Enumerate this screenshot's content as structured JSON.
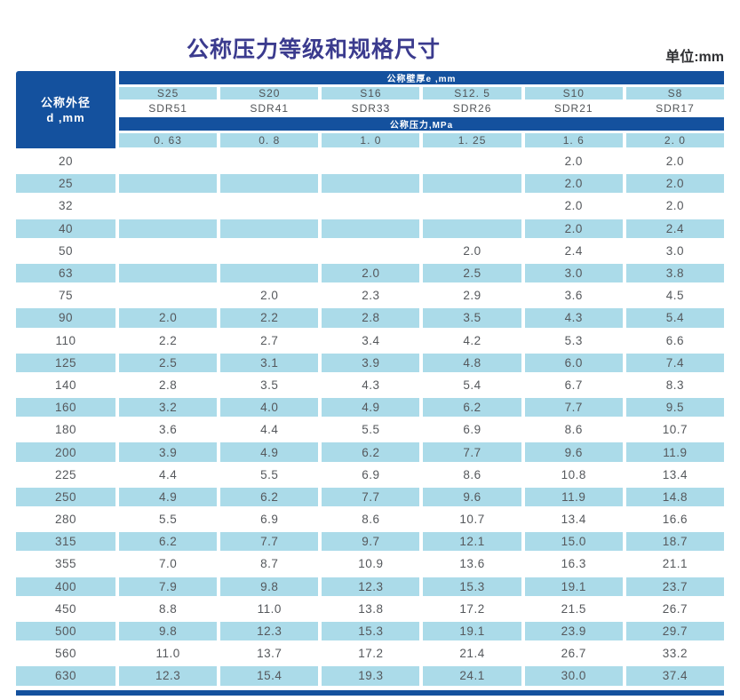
{
  "title": "公称压力等级和规格尺寸",
  "unit_label": "单位:mm",
  "colors": {
    "dark_blue": "#14519e",
    "light_blue": "#abdbe9",
    "title": "#3b3b8e",
    "text": "#55585c"
  },
  "table": {
    "row_header": {
      "line1": "公称外径",
      "line2": "d ,mm"
    },
    "band_thickness": "公称壁厚e ,mm",
    "band_pressure": "公称压力,MPa",
    "s_series": [
      "S25",
      "S20",
      "S16",
      "S12. 5",
      "S10",
      "S8"
    ],
    "sdr_series": [
      "SDR51",
      "SDR41",
      "SDR33",
      "SDR26",
      "SDR21",
      "SDR17"
    ],
    "pressures": [
      "0. 63",
      "0. 8",
      "1. 0",
      "1. 25",
      "1. 6",
      "2. 0"
    ],
    "rows": [
      {
        "d": "20",
        "values": [
          "",
          "",
          "",
          "",
          "2.0",
          "2.0"
        ]
      },
      {
        "d": "25",
        "values": [
          "",
          "",
          "",
          "",
          "2.0",
          "2.0"
        ]
      },
      {
        "d": "32",
        "values": [
          "",
          "",
          "",
          "",
          "2.0",
          "2.0"
        ]
      },
      {
        "d": "40",
        "values": [
          "",
          "",
          "",
          "",
          "2.0",
          "2.4"
        ]
      },
      {
        "d": "50",
        "values": [
          "",
          "",
          "",
          "2.0",
          "2.4",
          "3.0"
        ]
      },
      {
        "d": "63",
        "values": [
          "",
          "",
          "2.0",
          "2.5",
          "3.0",
          "3.8"
        ]
      },
      {
        "d": "75",
        "values": [
          "",
          "2.0",
          "2.3",
          "2.9",
          "3.6",
          "4.5"
        ]
      },
      {
        "d": "90",
        "values": [
          "2.0",
          "2.2",
          "2.8",
          "3.5",
          "4.3",
          "5.4"
        ]
      },
      {
        "d": "110",
        "values": [
          "2.2",
          "2.7",
          "3.4",
          "4.2",
          "5.3",
          "6.6"
        ]
      },
      {
        "d": "125",
        "values": [
          "2.5",
          "3.1",
          "3.9",
          "4.8",
          "6.0",
          "7.4"
        ]
      },
      {
        "d": "140",
        "values": [
          "2.8",
          "3.5",
          "4.3",
          "5.4",
          "6.7",
          "8.3"
        ]
      },
      {
        "d": "160",
        "values": [
          "3.2",
          "4.0",
          "4.9",
          "6.2",
          "7.7",
          "9.5"
        ]
      },
      {
        "d": "180",
        "values": [
          "3.6",
          "4.4",
          "5.5",
          "6.9",
          "8.6",
          "10.7"
        ]
      },
      {
        "d": "200",
        "values": [
          "3.9",
          "4.9",
          "6.2",
          "7.7",
          "9.6",
          "11.9"
        ]
      },
      {
        "d": "225",
        "values": [
          "4.4",
          "5.5",
          "6.9",
          "8.6",
          "10.8",
          "13.4"
        ]
      },
      {
        "d": "250",
        "values": [
          "4.9",
          "6.2",
          "7.7",
          "9.6",
          "11.9",
          "14.8"
        ]
      },
      {
        "d": "280",
        "values": [
          "5.5",
          "6.9",
          "8.6",
          "10.7",
          "13.4",
          "16.6"
        ]
      },
      {
        "d": "315",
        "values": [
          "6.2",
          "7.7",
          "9.7",
          "12.1",
          "15.0",
          "18.7"
        ]
      },
      {
        "d": "355",
        "values": [
          "7.0",
          "8.7",
          "10.9",
          "13.6",
          "16.3",
          "21.1"
        ]
      },
      {
        "d": "400",
        "values": [
          "7.9",
          "9.8",
          "12.3",
          "15.3",
          "19.1",
          "23.7"
        ]
      },
      {
        "d": "450",
        "values": [
          "8.8",
          "11.0",
          "13.8",
          "17.2",
          "21.5",
          "26.7"
        ]
      },
      {
        "d": "500",
        "values": [
          "9.8",
          "12.3",
          "15.3",
          "19.1",
          "23.9",
          "29.7"
        ]
      },
      {
        "d": "560",
        "values": [
          "11.0",
          "13.7",
          "17.2",
          "21.4",
          "26.7",
          "33.2"
        ]
      },
      {
        "d": "630",
        "values": [
          "12.3",
          "15.4",
          "19.3",
          "24.1",
          "30.0",
          "37.4"
        ]
      }
    ]
  }
}
